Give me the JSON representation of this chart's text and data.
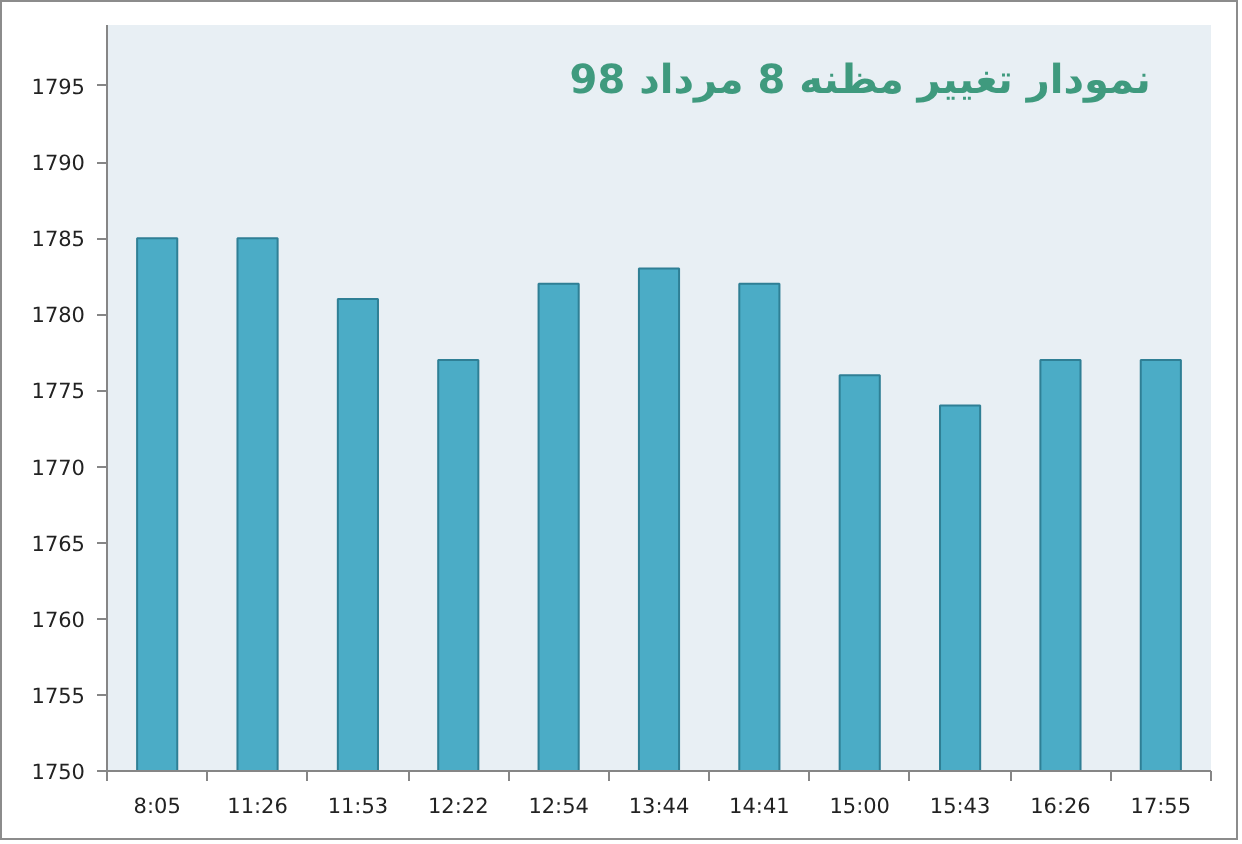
{
  "chart_data": {
    "type": "bar",
    "title": "نمودار تغییر مظنه 8 مرداد 98",
    "categories": [
      "8:05",
      "11:26",
      "11:53",
      "12:22",
      "12:54",
      "13:44",
      "14:41",
      "15:00",
      "15:43",
      "16:26",
      "17:55"
    ],
    "values": [
      1785,
      1785,
      1781,
      1777,
      1782,
      1783,
      1782,
      1776,
      1774,
      1777,
      1777
    ],
    "color": "#4bacc6",
    "ylim": [
      1750,
      1799
    ],
    "yticks": [
      1750,
      1755,
      1760,
      1765,
      1770,
      1775,
      1780,
      1785,
      1790,
      1795
    ],
    "grid": false
  }
}
